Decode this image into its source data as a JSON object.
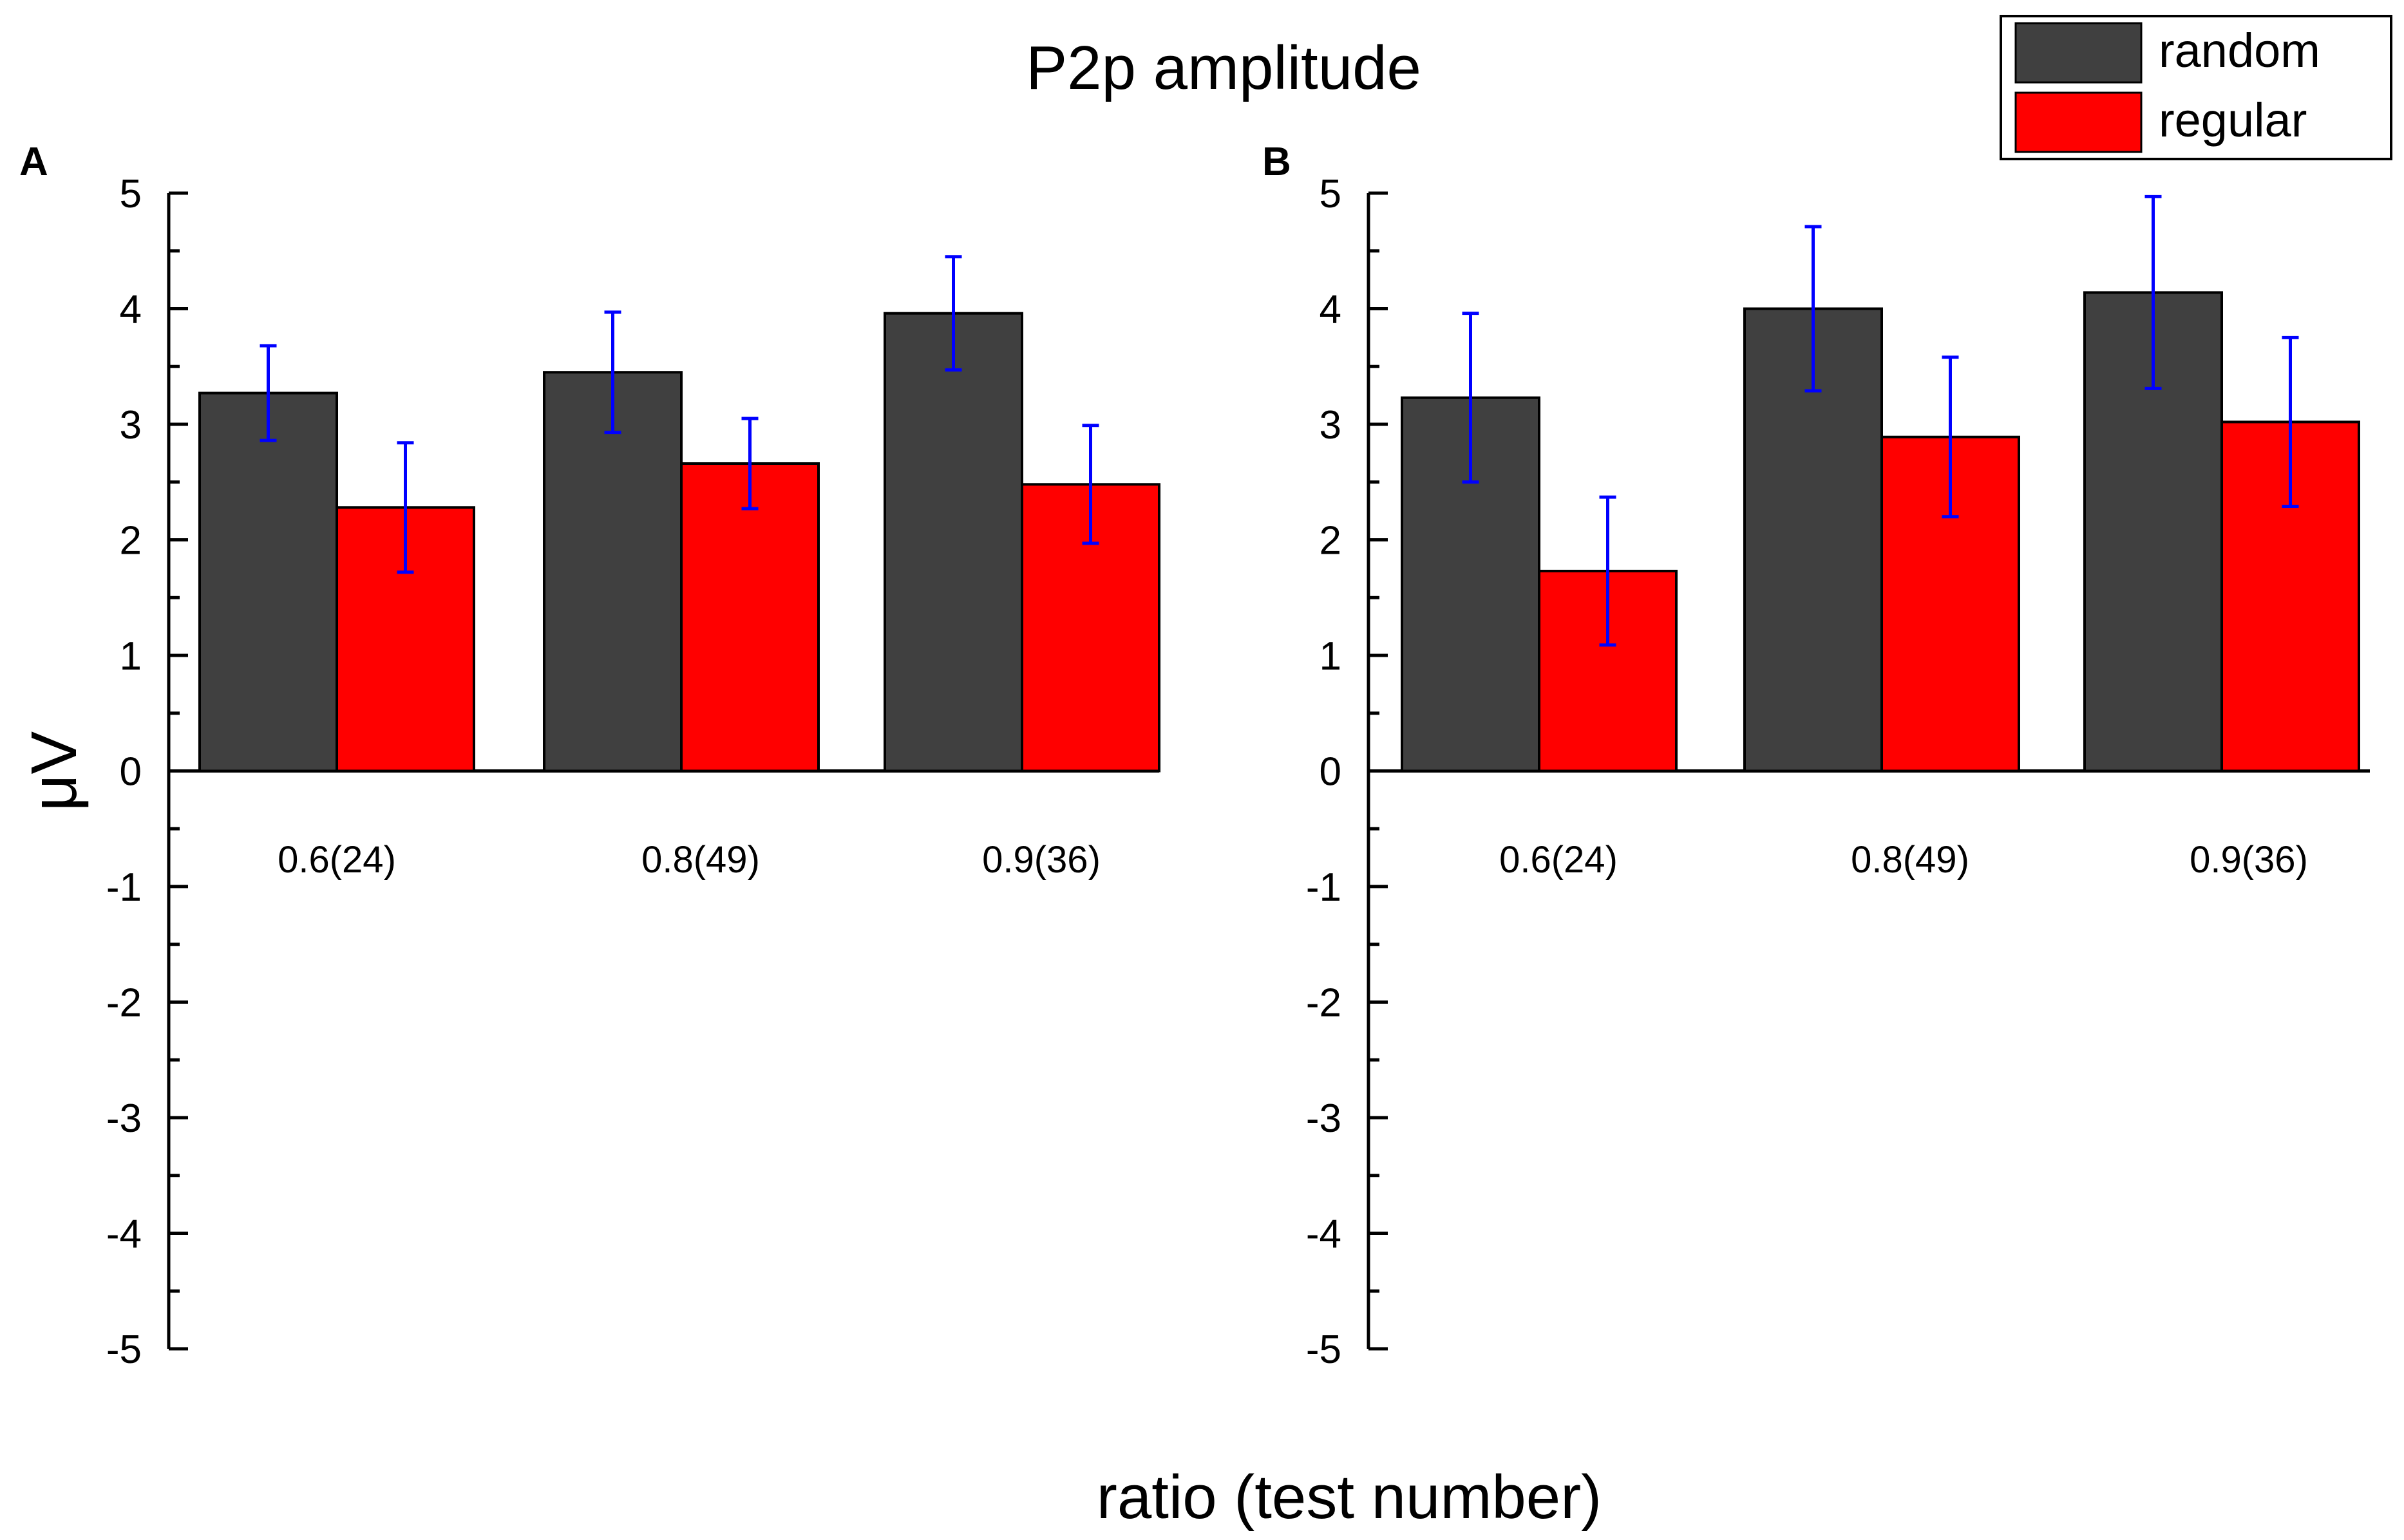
{
  "chart_data": [
    {
      "type": "bar",
      "panel": "A",
      "categories": [
        "0.6(24)",
        "0.8(49)",
        "0.9(36)"
      ],
      "series": [
        {
          "name": "random",
          "color": "#404040",
          "values": [
            3.27,
            3.45,
            3.96
          ],
          "errors": [
            0.41,
            0.52,
            0.49
          ]
        },
        {
          "name": "regular",
          "color": "#ff0000",
          "values": [
            2.28,
            2.66,
            2.48
          ],
          "errors": [
            0.56,
            0.39,
            0.51
          ]
        }
      ],
      "ylim": [
        -5,
        5
      ],
      "yticks": [
        5,
        4,
        3,
        2,
        1,
        0,
        -1,
        -2,
        -3,
        -4,
        -5
      ]
    },
    {
      "type": "bar",
      "panel": "B",
      "categories": [
        "0.6(24)",
        "0.8(49)",
        "0.9(36)"
      ],
      "series": [
        {
          "name": "random",
          "color": "#404040",
          "values": [
            3.23,
            4.0,
            4.14
          ],
          "errors": [
            0.73,
            0.71,
            0.83
          ]
        },
        {
          "name": "regular",
          "color": "#ff0000",
          "values": [
            1.73,
            2.89,
            3.02
          ],
          "errors": [
            0.64,
            0.69,
            0.73
          ]
        }
      ],
      "ylim": [
        -5,
        5
      ],
      "yticks": [
        5,
        4,
        3,
        2,
        1,
        0,
        -1,
        -2,
        -3,
        -4,
        -5
      ]
    }
  ],
  "figure": {
    "title": "P2p amplitude",
    "ylabel": "μV",
    "xlabel": "ratio (test number)",
    "legend_position": "top-right",
    "legend": [
      {
        "name": "random",
        "color": "#404040"
      },
      {
        "name": "regular",
        "color": "#ff0000"
      }
    ]
  }
}
